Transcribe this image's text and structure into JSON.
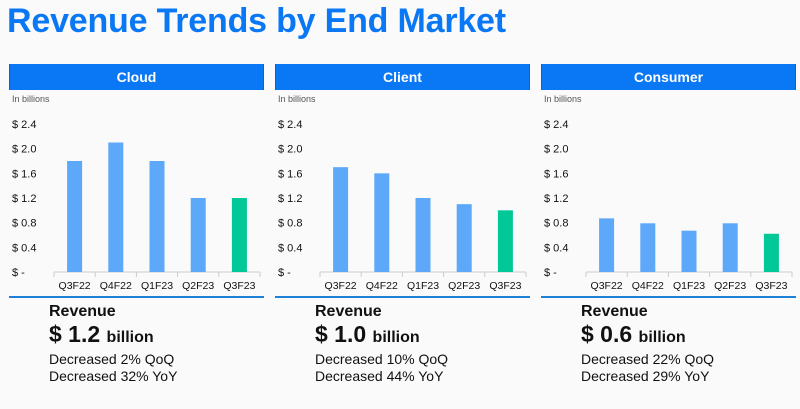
{
  "page": {
    "title": "Revenue Trends by End Market"
  },
  "colors": {
    "accent": "#0a78f5",
    "bar": "#5ea8fa",
    "highlight": "#00c896",
    "axis": "#cccccc"
  },
  "panels": [
    {
      "name": "Cloud",
      "units": "In billions",
      "summary": {
        "label": "Revenue",
        "value": "$ 1.2",
        "unit": "billion",
        "qoq": "Decreased 2% QoQ",
        "yoy": "Decreased 32% YoY"
      }
    },
    {
      "name": "Client",
      "units": "In billions",
      "summary": {
        "label": "Revenue",
        "value": "$ 1.0",
        "unit": "billion",
        "qoq": "Decreased 10% QoQ",
        "yoy": "Decreased 44% YoY"
      }
    },
    {
      "name": "Consumer",
      "units": "In billions",
      "summary": {
        "label": "Revenue",
        "value": "$ 0.6",
        "unit": "billion",
        "qoq": "Decreased 22% QoQ",
        "yoy": "Decreased 29% YoY"
      }
    }
  ],
  "chart_data": [
    {
      "type": "bar",
      "title": "Cloud",
      "ylabel": "In billions",
      "categories": [
        "Q3F22",
        "Q4F22",
        "Q1F23",
        "Q2F23",
        "Q3F23"
      ],
      "values": [
        1.8,
        2.1,
        1.8,
        1.2,
        1.2
      ],
      "highlight_index": 4,
      "ylim": [
        0,
        2.4
      ],
      "yticks": [
        0,
        0.4,
        0.8,
        1.2,
        1.6,
        2.0,
        2.4
      ],
      "ytick_labels": [
        "$ -",
        "$ 0.4",
        "$ 0.8",
        "$ 1.2",
        "$ 1.6",
        "$ 2.0",
        "$ 2.4"
      ],
      "grid": false
    },
    {
      "type": "bar",
      "title": "Client",
      "ylabel": "In billions",
      "categories": [
        "Q3F22",
        "Q4F22",
        "Q1F23",
        "Q2F23",
        "Q3F23"
      ],
      "values": [
        1.7,
        1.6,
        1.2,
        1.1,
        1.0
      ],
      "highlight_index": 4,
      "ylim": [
        0,
        2.4
      ],
      "yticks": [
        0,
        0.4,
        0.8,
        1.2,
        1.6,
        2.0,
        2.4
      ],
      "ytick_labels": [
        "$ -",
        "$ 0.4",
        "$ 0.8",
        "$ 1.2",
        "$ 1.6",
        "$ 2.0",
        "$ 2.4"
      ],
      "grid": false
    },
    {
      "type": "bar",
      "title": "Consumer",
      "ylabel": "In billions",
      "categories": [
        "Q3F22",
        "Q4F22",
        "Q1F23",
        "Q2F23",
        "Q3F23"
      ],
      "values": [
        0.87,
        0.79,
        0.67,
        0.79,
        0.62
      ],
      "highlight_index": 4,
      "ylim": [
        0,
        2.4
      ],
      "yticks": [
        0,
        0.4,
        0.8,
        1.2,
        1.6,
        2.0,
        2.4
      ],
      "ytick_labels": [
        "$ -",
        "$ 0.4",
        "$ 0.8",
        "$ 1.2",
        "$ 1.6",
        "$ 2.0",
        "$ 2.4"
      ],
      "grid": false
    }
  ]
}
